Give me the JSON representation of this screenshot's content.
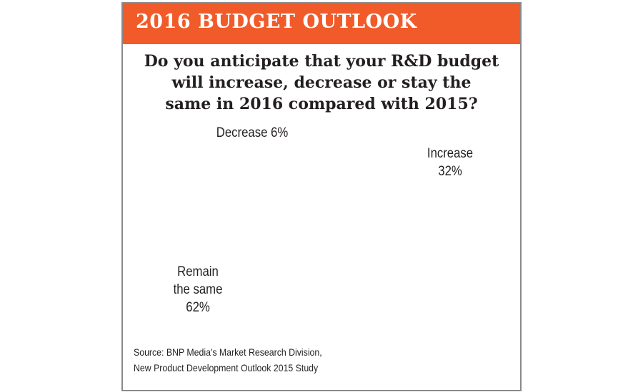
{
  "header": {
    "title": "2016 BUDGET OUTLOOK"
  },
  "question": {
    "lines": [
      "Do you anticipate that your R&D budget",
      "will increase, decrease or stay the",
      "same in 2016 compared with 2015?"
    ]
  },
  "chart_data": {
    "type": "pie",
    "title": "Do you anticipate that your R&D budget will increase, decrease or stay the same in 2016 compared with 2015?",
    "slices": [
      {
        "name": "Increase",
        "value": 32,
        "label_lines": [
          "Increase",
          "32%"
        ],
        "color": "#e0296f"
      },
      {
        "name": "Remain the same",
        "value": 62,
        "label_lines": [
          "Remain",
          "the same",
          "62%"
        ],
        "color": "#fbc48c"
      },
      {
        "name": "Decrease",
        "value": 6,
        "label_lines": [
          "Decrease 6%"
        ],
        "color": "#5cb030"
      }
    ],
    "source_lines": [
      "Source: BNP Media's Market Research Division,",
      "New Product Development Outlook 2015 Study"
    ]
  },
  "colors": {
    "header": "#f15a29",
    "increase_side": "#8c0046",
    "remain_side": "#9a6a00",
    "decrease_side": "#14662a"
  }
}
